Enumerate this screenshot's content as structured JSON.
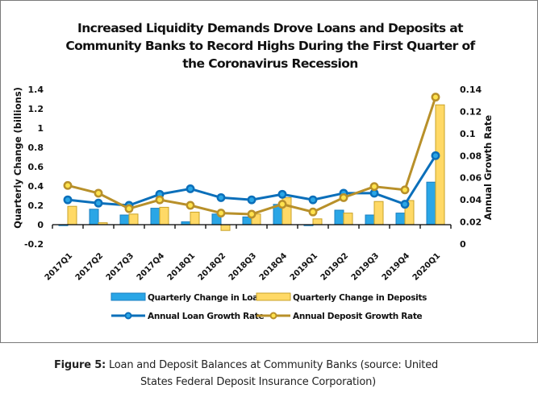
{
  "caption": {
    "label": "Figure 5:",
    "text_line1": " Loan and Deposit Balances at Community Banks (source: United",
    "text_line2": "States Federal Deposit Insurance Corporation)"
  },
  "chart_data": {
    "type": "bar",
    "title_lines": [
      "Increased Liquidity Demands Drove Loans and Deposits at",
      "Community Banks to Record Highs During the First Quarter of",
      "the Coronavirus Recession"
    ],
    "title": "Increased Liquidity Demands Drove Loans and Deposits at Community Banks to Record Highs During the First Quarter of the Coronavirus Recession",
    "xlabel": "",
    "ylabel": "Quarterly Change (billions)",
    "y2label": "Annual Growth Rate",
    "ylim": [
      -0.2,
      1.4
    ],
    "yticks": [
      "-0.2",
      "0",
      "0.2",
      "0.4",
      "0.6",
      "0.8",
      "1",
      "1.2",
      "1.4"
    ],
    "y2lim": [
      0,
      0.14
    ],
    "y2ticks": [
      "0",
      "0.02",
      "0.04",
      "0.06",
      "0.08",
      "0.1",
      "0.12",
      "0.14"
    ],
    "grid": false,
    "legend_position": "bottom",
    "categories": [
      "2017Q1",
      "2017Q2",
      "2017Q3",
      "2017Q4",
      "2018Q1",
      "2018Q2",
      "2018Q3",
      "2018Q4",
      "2019Q1",
      "2019Q2",
      "2019Q3",
      "2019Q4",
      "2020Q1"
    ],
    "series": [
      {
        "name": "Quarterly Change in Loans",
        "type": "bar",
        "axis": "left",
        "color": "#2aa6e6",
        "values": [
          -0.01,
          0.16,
          0.1,
          0.17,
          0.03,
          0.11,
          0.08,
          0.21,
          -0.01,
          0.15,
          0.1,
          0.12,
          0.44
        ]
      },
      {
        "name": "Quarterly Change in Deposits",
        "type": "bar",
        "axis": "left",
        "color": "#ffd966",
        "values": [
          0.19,
          0.02,
          0.11,
          0.18,
          0.13,
          -0.06,
          0.11,
          0.28,
          0.06,
          0.12,
          0.24,
          0.25,
          1.24
        ]
      },
      {
        "name": "Annual Loan Growth Rate",
        "type": "line",
        "axis": "right",
        "color": "#0b6fba",
        "values": [
          0.04,
          0.037,
          0.035,
          0.045,
          0.05,
          0.042,
          0.04,
          0.045,
          0.04,
          0.046,
          0.046,
          0.036,
          0.08
        ]
      },
      {
        "name": "Annual Deposit Growth Rate",
        "type": "line",
        "axis": "right",
        "color": "#b8902a",
        "values": [
          0.053,
          0.046,
          0.032,
          0.04,
          0.035,
          0.028,
          0.027,
          0.036,
          0.029,
          0.042,
          0.052,
          0.049,
          0.133
        ]
      }
    ]
  }
}
